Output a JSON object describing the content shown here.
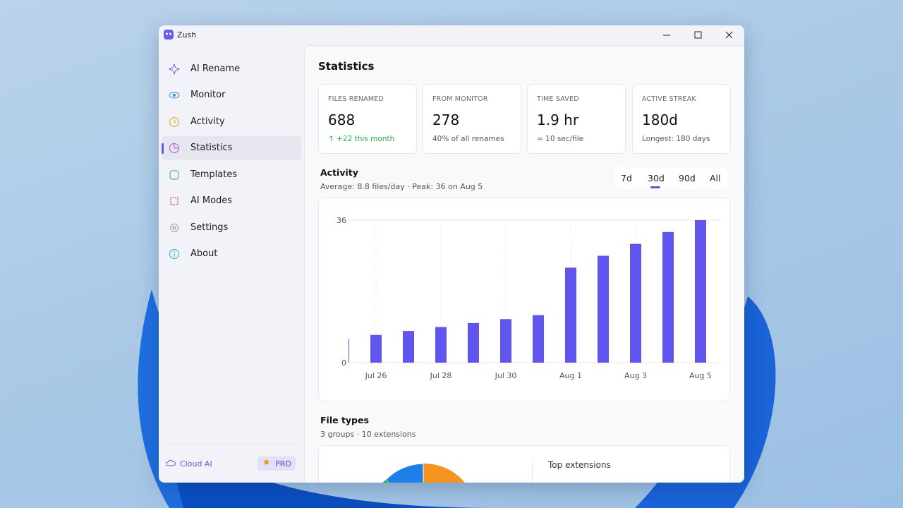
{
  "window": {
    "title": "Zush"
  },
  "sidebar": {
    "items": [
      "AI Rename",
      "Monitor",
      "Activity",
      "Statistics",
      "Templates",
      "AI Modes",
      "Settings",
      "About"
    ],
    "cloud": "Cloud AI",
    "pro": "PRO"
  },
  "main": {
    "title": "Statistics",
    "cards": [
      {
        "label": "FILES RENAMED",
        "value": "688",
        "note": "↑ +22 this month"
      },
      {
        "label": "FROM MONITOR",
        "value": "278",
        "note": "40% of all renames"
      },
      {
        "label": "TIME SAVED",
        "value": "1.9 hr",
        "note": "≈ 10 sec/file"
      },
      {
        "label": "ACTIVE STREAK",
        "value": "180d",
        "note": "Longest: 180 days"
      }
    ],
    "activity": {
      "title": "Activity",
      "subtitle": "Average: 8.8 files/day · Peak: 36 on Aug 5",
      "ranges": [
        "7d",
        "30d",
        "90d",
        "All"
      ]
    },
    "file_types": {
      "title": "File types",
      "subtitle": "3 groups · 10 extensions",
      "top": "Top extensions"
    }
  },
  "chart_data": {
    "type": "bar",
    "categories": [
      null,
      "Jul 26",
      null,
      "Jul 28",
      null,
      "Jul 30",
      null,
      "Aug 1",
      null,
      "Aug 3",
      null,
      "Aug 5"
    ],
    "values": [
      6,
      7,
      8,
      9,
      10,
      11,
      12,
      24,
      27,
      30,
      33,
      36
    ],
    "color": "#6055f0",
    "ylim": [
      0,
      36
    ],
    "yticks": [
      0,
      36
    ],
    "grid": true
  }
}
